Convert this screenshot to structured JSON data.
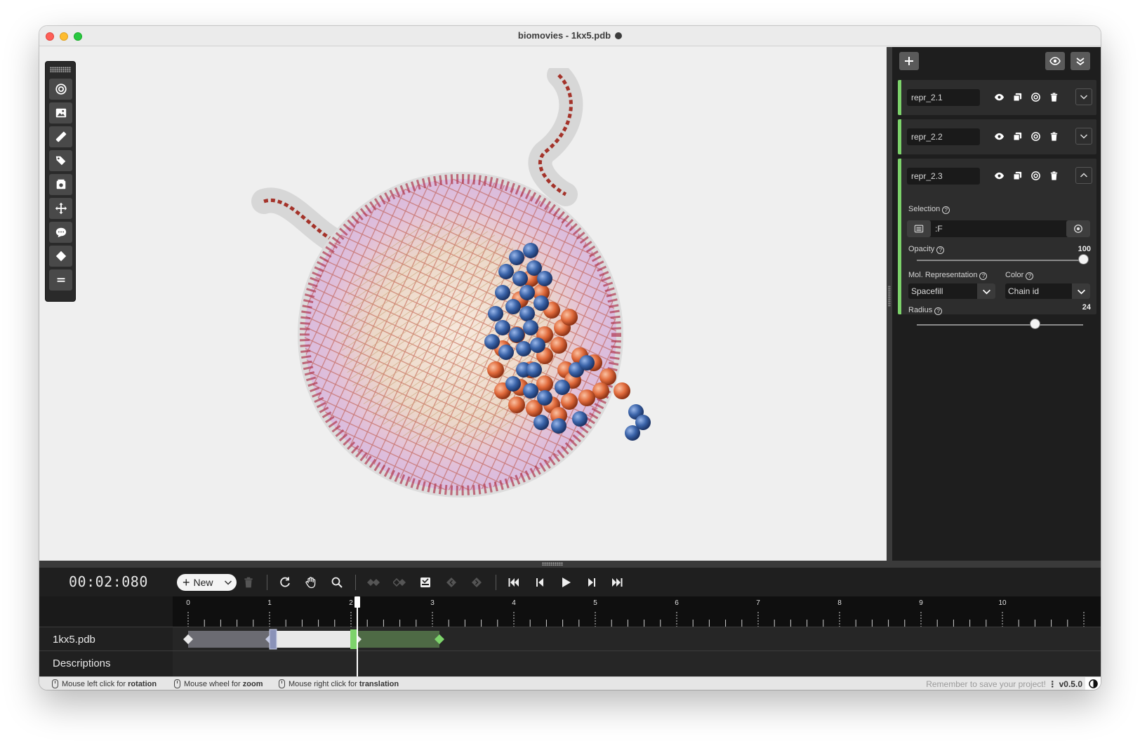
{
  "window": {
    "title": "biomovies - 1kx5.pdb"
  },
  "toolbox": {
    "items": [
      "focus-icon",
      "image-icon",
      "ruler-icon",
      "tag-icon",
      "snapshot-icon",
      "move-icon",
      "comment-icon",
      "keyframe-icon",
      "menu-icon"
    ]
  },
  "representations": [
    {
      "name": "repr_2.1",
      "expanded": false
    },
    {
      "name": "repr_2.2",
      "expanded": false
    },
    {
      "name": "repr_2.3",
      "expanded": true,
      "selection_label": "Selection",
      "selection_value": ":F",
      "opacity_label": "Opacity",
      "opacity_value": "100",
      "opacity_fraction": 1.0,
      "mol_repr_label": "Mol. Representation",
      "mol_repr_value": "Spacefill",
      "color_label": "Color",
      "color_value": "Chain id",
      "radius_label": "Radius",
      "radius_value": "24",
      "radius_fraction": 0.71
    }
  ],
  "timeline": {
    "timecode": "00:02:080",
    "new_label": "New",
    "ruler_labels": [
      "0",
      "1",
      "2",
      "3",
      "4",
      "5",
      "6",
      "7",
      "8",
      "9",
      "10"
    ],
    "playhead_seconds": 2.08,
    "tracks": [
      {
        "label": "1kx5.pdb"
      },
      {
        "label": "Descriptions"
      }
    ]
  },
  "statusbar": {
    "hint1_prefix": "Mouse left click for",
    "hint1_action": "rotation",
    "hint2_prefix": "Mouse wheel for",
    "hint2_action": "zoom",
    "hint3_prefix": "Mouse right click for",
    "hint3_action": "translation",
    "save_reminder": "Remember to save your project!",
    "version": "v0.5.0"
  },
  "colors": {
    "accent_green": "#7dd36b",
    "chain_blue": "#3a63a8",
    "chain_orange": "#e06a3b"
  }
}
